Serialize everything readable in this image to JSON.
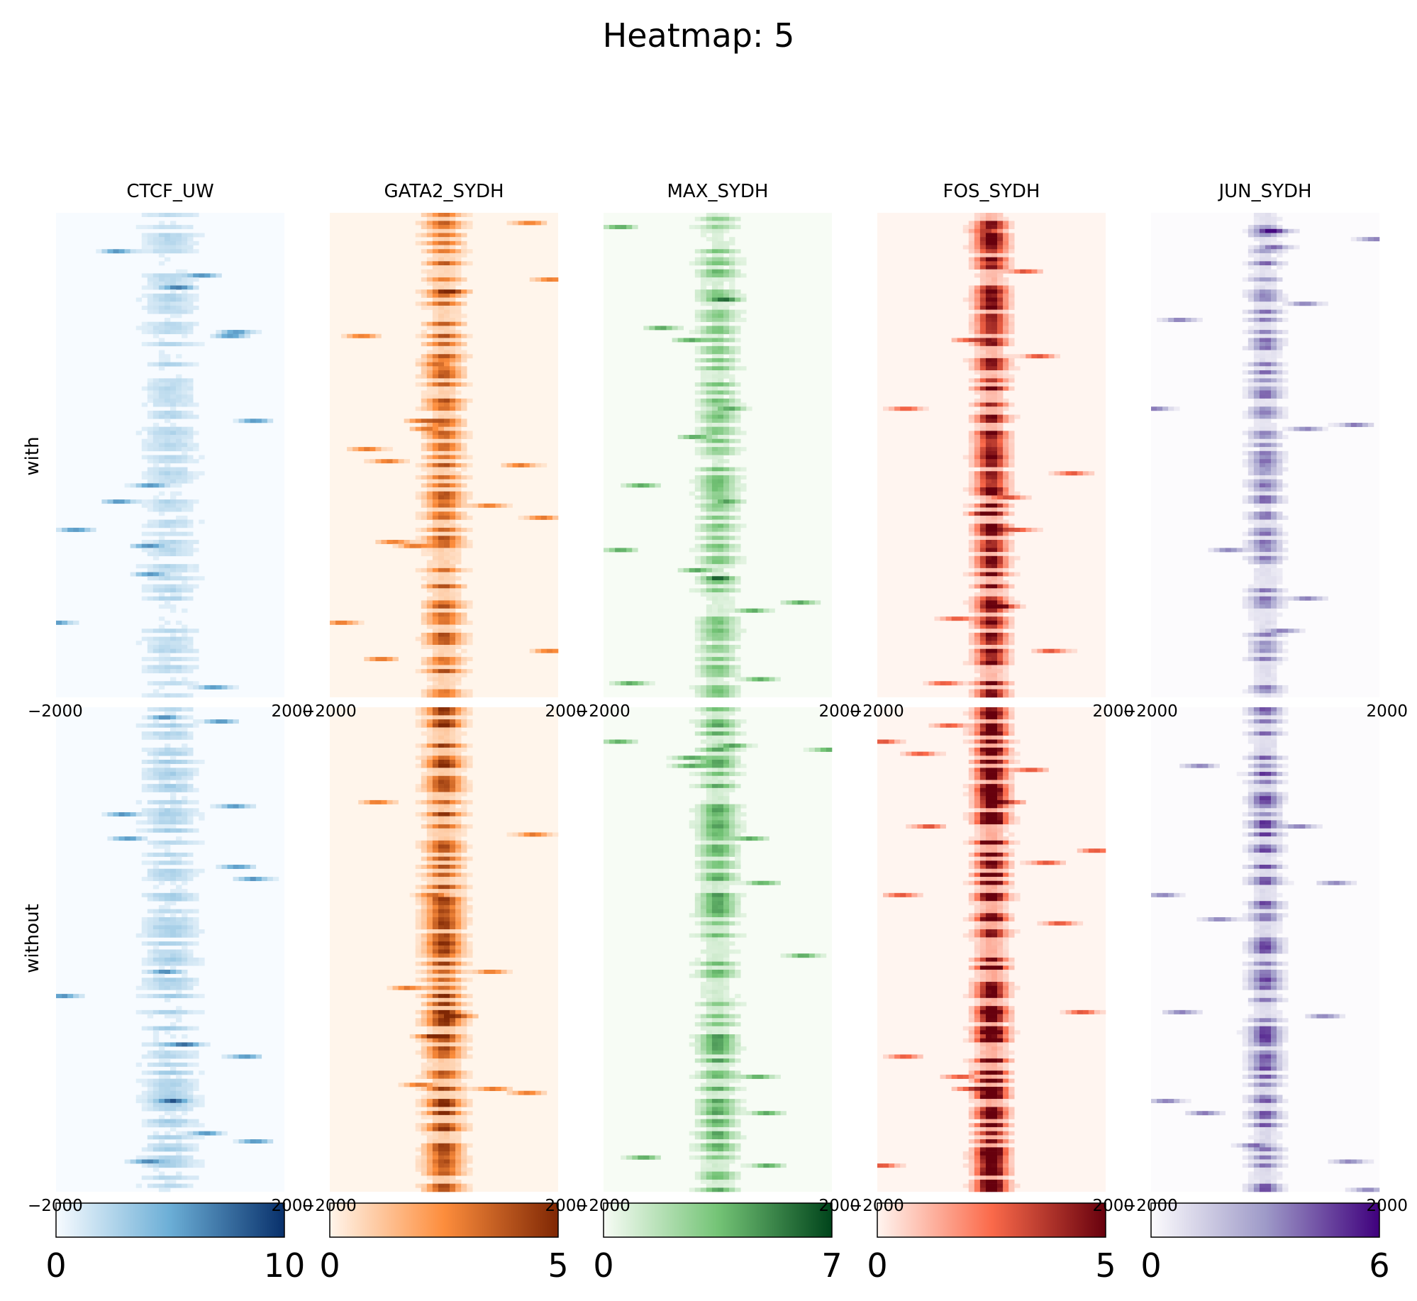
{
  "chart_data": {
    "type": "heatmap",
    "title": "Heatmap: 5",
    "row_groups": [
      "with",
      "without"
    ],
    "x_tick_labels": [
      "−2000",
      "2000"
    ],
    "panels": [
      {
        "name": "CTCF_UW",
        "colormap": "Blues",
        "color_low": "#f7fbff",
        "color_mid": "#6baed6",
        "color_high": "#08306b",
        "vmin": 0,
        "vmax": 10,
        "vmin_label": "0",
        "vmax_label": "10",
        "rows_with": 120,
        "rows_without": 120,
        "peak": "weak / sparse"
      },
      {
        "name": "GATA2_SYDH",
        "colormap": "Oranges",
        "color_low": "#fff5eb",
        "color_mid": "#fd8d3c",
        "color_high": "#7f2704",
        "vmin": 0,
        "vmax": 5,
        "vmin_label": "0",
        "vmax_label": "5",
        "rows_with": 120,
        "rows_without": 120,
        "peak": "centered"
      },
      {
        "name": "MAX_SYDH",
        "colormap": "Greens",
        "color_low": "#f7fcf5",
        "color_mid": "#74c476",
        "color_high": "#00441b",
        "vmin": 0,
        "vmax": 7,
        "vmin_label": "0",
        "vmax_label": "7",
        "rows_with": 120,
        "rows_without": 120,
        "peak": "centered, weak"
      },
      {
        "name": "FOS_SYDH",
        "colormap": "Reds",
        "color_low": "#fff5f0",
        "color_mid": "#fb6a4a",
        "color_high": "#67000d",
        "vmin": 0,
        "vmax": 5,
        "vmin_label": "0",
        "vmax_label": "5",
        "rows_with": 120,
        "rows_without": 120,
        "peak": "centered, strong"
      },
      {
        "name": "JUN_SYDH",
        "colormap": "Purples",
        "color_low": "#fcfbfd",
        "color_mid": "#9e9ac8",
        "color_high": "#3f007d",
        "vmin": 0,
        "vmax": 6,
        "vmin_label": "0",
        "vmax_label": "6",
        "rows_with": 120,
        "rows_without": 120,
        "peak": "centered"
      }
    ],
    "grid": false,
    "legend": "colorbars below each column"
  }
}
